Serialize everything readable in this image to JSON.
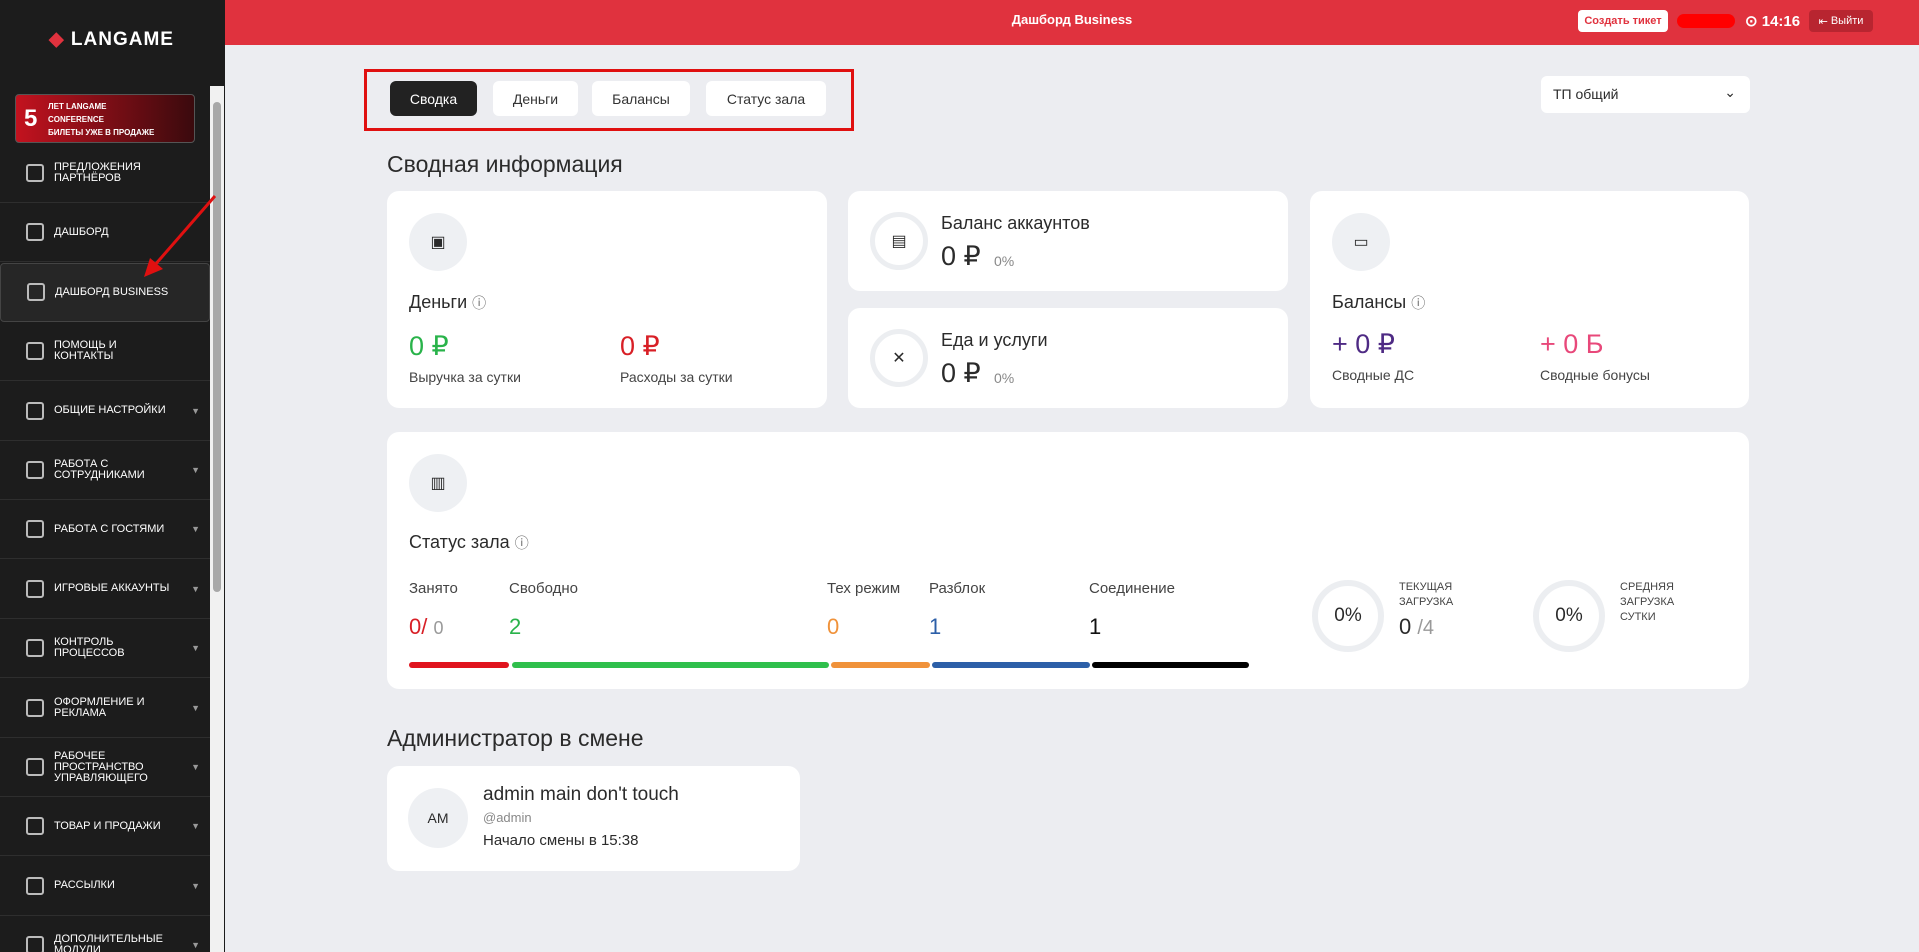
{
  "sidebar": {
    "logo": "LANGAME",
    "banner": {
      "number": "5",
      "line1": "ЛЕТ LANGAME",
      "line2": "CONFERENCE",
      "line3": "БИЛЕТЫ УЖЕ В ПРОДАЖЕ"
    },
    "menu": [
      "Предложения партнёров",
      "Дашборд",
      "Дашборд Business",
      "Помощь и контакты",
      "Общие настройки",
      "Работа с сотрудниками",
      "Работа с гостями",
      "Игровые аккаунты",
      "Контроль процессов",
      "Оформление и реклама",
      "Рабочее пространство управляющего",
      "Товар и продажи",
      "Рассылки",
      "Дополнительные модули"
    ]
  },
  "header": {
    "title": "Дашборд Business",
    "ticket_button": "Создать тикет",
    "time": "14:16",
    "logout": "Выйти"
  },
  "tabs": [
    "Сводка",
    "Деньги",
    "Балансы",
    "Статус зала"
  ],
  "select": "ТП общий",
  "summary": {
    "title": "Сводная информация",
    "money": {
      "title": "Деньги",
      "revenue": "0 ₽",
      "revenue_label": "Выручка за сутки",
      "expenses": "0 ₽",
      "expenses_label": "Расходы за сутки"
    },
    "accounts": {
      "title": "Баланс аккаунтов",
      "value": "0 ₽",
      "percent": "0%"
    },
    "food": {
      "title": "Еда и услуги",
      "value": "0 ₽",
      "percent": "0%"
    },
    "balances": {
      "title": "Балансы",
      "cash": "+ 0 ₽",
      "cash_label": "Сводные ДС",
      "bonus": "+ 0 Б",
      "bonus_label": "Сводные бонусы"
    }
  },
  "hall": {
    "title": "Статус зала",
    "busy_label": "Занято",
    "busy": "0/",
    "busy_total": "0",
    "free_label": "Свободно",
    "free": "2",
    "tech_label": "Тех режим",
    "tech": "0",
    "unlock_label": "Разблок",
    "unlock": "1",
    "conn_label": "Соединение",
    "conn": "1",
    "load_value": "0%",
    "load_label": "Текущая загрузка",
    "load_count": "0",
    "load_total": "/4",
    "avg_value": "0%",
    "avg_label": "Средняя загрузка сутки"
  },
  "admin": {
    "title": "Администратор в смене",
    "initials": "AM",
    "name": "admin main don't touch",
    "login": "@admin",
    "shift": "Начало смены в 15:38"
  }
}
